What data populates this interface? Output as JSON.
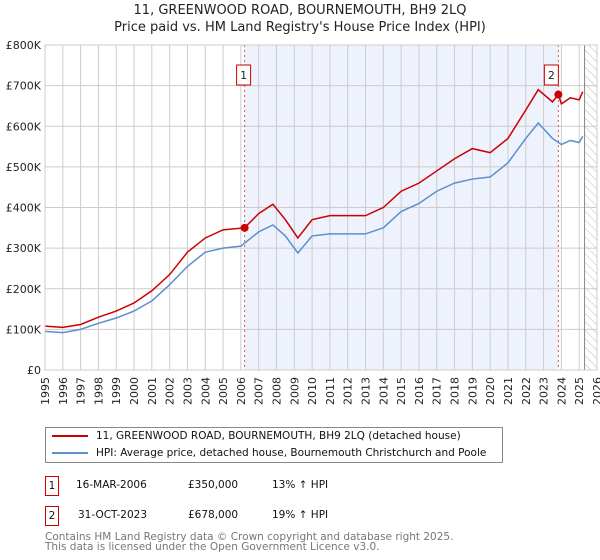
{
  "chart_data": {
    "type": "line",
    "title": "11, GREENWOOD ROAD, BOURNEMOUTH, BH9 2LQ",
    "subtitle": "Price paid vs. HM Land Registry's House Price Index (HPI)",
    "xlim": [
      1995,
      2026
    ],
    "ylim": [
      0,
      800000
    ],
    "x_ticks": [
      "1995",
      "1996",
      "1997",
      "1998",
      "1999",
      "2000",
      "2001",
      "2002",
      "2003",
      "2004",
      "2005",
      "2006",
      "2007",
      "2008",
      "2009",
      "2010",
      "2011",
      "2012",
      "2013",
      "2014",
      "2015",
      "2016",
      "2017",
      "2018",
      "2019",
      "2020",
      "2021",
      "2022",
      "2023",
      "2024",
      "2025",
      "2026"
    ],
    "y_ticks": [
      {
        "v": 0,
        "label": "£0"
      },
      {
        "v": 100000,
        "label": "£100K"
      },
      {
        "v": 200000,
        "label": "£200K"
      },
      {
        "v": 300000,
        "label": "£300K"
      },
      {
        "v": 400000,
        "label": "£400K"
      },
      {
        "v": 500000,
        "label": "£500K"
      },
      {
        "v": 600000,
        "label": "£600K"
      },
      {
        "v": 700000,
        "label": "£700K"
      },
      {
        "v": 800000,
        "label": "£800K"
      }
    ],
    "grid": true,
    "shaded_range": [
      2006.21,
      2023.83
    ],
    "hatched_from": 2025.3,
    "series": [
      {
        "name": "11, GREENWOOD ROAD, BOURNEMOUTH, BH9 2LQ (detached house)",
        "color": "#cc0000",
        "x": [
          1995,
          1996,
          1997,
          1998,
          1999,
          2000,
          2001,
          2002,
          2003,
          2004,
          2005,
          2006.21,
          2007,
          2007.8,
          2008.5,
          2009.2,
          2010,
          2011,
          2012,
          2013,
          2014,
          2015,
          2016,
          2017,
          2018,
          2019,
          2020,
          2021,
          2022,
          2022.7,
          2023.5,
          2023.83,
          2024,
          2024.5,
          2025,
          2025.2
        ],
        "y": [
          108000,
          105000,
          112000,
          130000,
          145000,
          165000,
          195000,
          235000,
          290000,
          325000,
          345000,
          350000,
          385000,
          408000,
          370000,
          325000,
          370000,
          380000,
          380000,
          380000,
          400000,
          440000,
          460000,
          490000,
          520000,
          545000,
          535000,
          570000,
          640000,
          690000,
          660000,
          678000,
          655000,
          670000,
          665000,
          685000
        ]
      },
      {
        "name": "HPI: Average price, detached house, Bournemouth Christchurch and Poole",
        "color": "#5b8fd0",
        "x": [
          1995,
          1996,
          1997,
          1998,
          1999,
          2000,
          2001,
          2002,
          2003,
          2004,
          2005,
          2006,
          2007,
          2007.8,
          2008.5,
          2009.2,
          2010,
          2011,
          2012,
          2013,
          2014,
          2015,
          2016,
          2017,
          2018,
          2019,
          2020,
          2021,
          2022,
          2022.7,
          2023.5,
          2024,
          2024.5,
          2025,
          2025.2
        ],
        "y": [
          95000,
          92000,
          100000,
          115000,
          128000,
          145000,
          170000,
          210000,
          255000,
          290000,
          300000,
          305000,
          340000,
          357000,
          330000,
          288000,
          330000,
          335000,
          335000,
          335000,
          350000,
          390000,
          410000,
          440000,
          460000,
          470000,
          475000,
          510000,
          570000,
          608000,
          570000,
          555000,
          565000,
          560000,
          575000
        ]
      }
    ],
    "annotations": [
      {
        "label": "1",
        "x": 2006.21,
        "y": 350000
      },
      {
        "label": "2",
        "x": 2023.83,
        "y": 678000
      }
    ]
  },
  "legend": [
    {
      "label": "11, GREENWOOD ROAD, BOURNEMOUTH, BH9 2LQ (detached house)",
      "color": "#cc0000"
    },
    {
      "label": "HPI: Average price, detached house, Bournemouth Christchurch and Poole",
      "color": "#5b8fd0"
    }
  ],
  "transactions": [
    {
      "num": "1",
      "date": "16-MAR-2006",
      "price": "£350,000",
      "hpi": "13% ↑ HPI"
    },
    {
      "num": "2",
      "date": "31-OCT-2023",
      "price": "£678,000",
      "hpi": "19% ↑ HPI"
    }
  ],
  "footer": {
    "line1": "Contains HM Land Registry data © Crown copyright and database right 2025.",
    "line2": "This data is licensed under the Open Government Licence v3.0."
  }
}
